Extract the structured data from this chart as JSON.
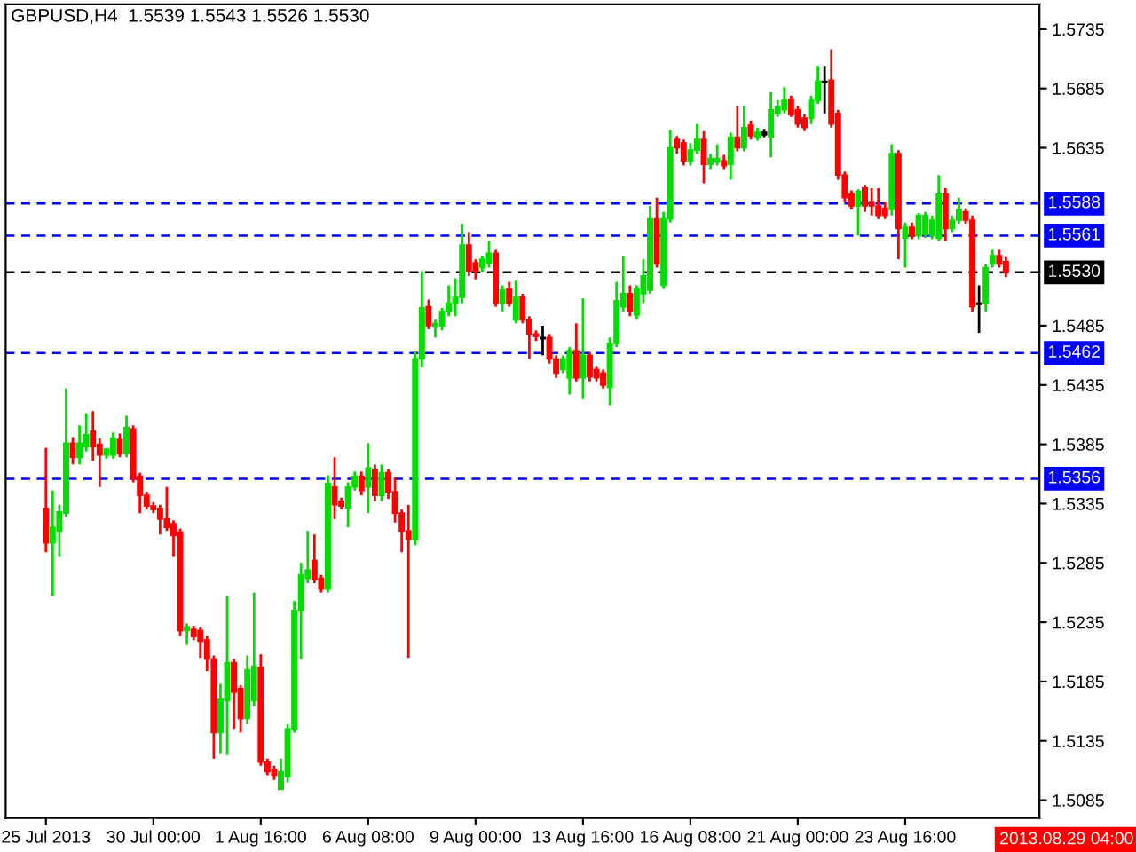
{
  "chart_data": {
    "type": "candlestick",
    "title": "GBPUSD,H4  1.5539 1.5543 1.5526 1.5530",
    "categories": [
      "25 Jul 2013",
      null,
      null,
      null,
      null,
      null,
      null,
      null,
      null,
      null,
      null,
      null,
      null,
      null,
      null,
      null,
      "30 Jul 00:00",
      null,
      null,
      null,
      null,
      null,
      null,
      null,
      null,
      null,
      null,
      null,
      null,
      null,
      null,
      null,
      "1 Aug 16:00",
      null,
      null,
      null,
      null,
      null,
      null,
      null,
      null,
      null,
      null,
      null,
      null,
      null,
      null,
      null,
      "6 Aug 08:00",
      null,
      null,
      null,
      null,
      null,
      null,
      null,
      null,
      null,
      null,
      null,
      null,
      null,
      null,
      null,
      "9 Aug 00:00",
      null,
      null,
      null,
      null,
      null,
      null,
      null,
      null,
      null,
      null,
      null,
      null,
      null,
      null,
      null,
      "13 Aug 16:00",
      null,
      null,
      null,
      null,
      null,
      null,
      null,
      null,
      null,
      null,
      null,
      null,
      null,
      null,
      null,
      "16 Aug 08:00",
      null,
      null,
      null,
      null,
      null,
      null,
      null,
      null,
      null,
      null,
      null,
      null,
      null,
      null,
      null,
      "21 Aug 00:00",
      null,
      null,
      null,
      null,
      null,
      null,
      null,
      null,
      null,
      null,
      null,
      null,
      null,
      null,
      null,
      "23 Aug 16:00",
      null,
      null,
      null,
      null,
      null,
      null,
      null,
      null,
      null,
      null,
      null,
      null,
      null,
      null,
      null
    ],
    "ohlc": [
      [
        1.5331,
        1.5382,
        1.5294,
        1.5302
      ],
      [
        1.5302,
        1.5346,
        1.5257,
        1.5315
      ],
      [
        1.5312,
        1.5334,
        1.529,
        1.5328
      ],
      [
        1.5327,
        1.5432,
        1.5324,
        1.5386
      ],
      [
        1.5386,
        1.5391,
        1.5368,
        1.5374
      ],
      [
        1.5374,
        1.5401,
        1.5368,
        1.5386
      ],
      [
        1.5383,
        1.5411,
        1.5379,
        1.5393
      ],
      [
        1.5396,
        1.5413,
        1.5371,
        1.5383
      ],
      [
        1.5385,
        1.539,
        1.5349,
        1.5376
      ],
      [
        1.5376,
        1.5382,
        1.5373,
        1.5381
      ],
      [
        1.5376,
        1.5395,
        1.5373,
        1.539
      ],
      [
        1.5389,
        1.5394,
        1.5374,
        1.5377
      ],
      [
        1.5377,
        1.5409,
        1.5374,
        1.5399
      ],
      [
        1.5398,
        1.5401,
        1.5353,
        1.5356
      ],
      [
        1.5358,
        1.5361,
        1.5327,
        1.5342
      ],
      [
        1.5342,
        1.5345,
        1.533,
        1.5333
      ],
      [
        1.5333,
        1.5336,
        1.5327,
        1.533
      ],
      [
        1.5331,
        1.5334,
        1.5309,
        1.5322
      ],
      [
        1.5322,
        1.5349,
        1.5312,
        1.5315
      ],
      [
        1.5318,
        1.5321,
        1.529,
        1.5308
      ],
      [
        1.5311,
        1.5314,
        1.5223,
        1.5228
      ],
      [
        1.5228,
        1.5234,
        1.5216,
        1.5231
      ],
      [
        1.5229,
        1.5232,
        1.522,
        1.5223
      ],
      [
        1.5228,
        1.5231,
        1.5205,
        1.5219
      ],
      [
        1.522,
        1.5223,
        1.5194,
        1.5204
      ],
      [
        1.5204,
        1.5207,
        1.512,
        1.5142
      ],
      [
        1.5142,
        1.5183,
        1.5124,
        1.517
      ],
      [
        1.5169,
        1.5257,
        1.5123,
        1.5201
      ],
      [
        1.5201,
        1.5204,
        1.5145,
        1.5176
      ],
      [
        1.5179,
        1.5182,
        1.5142,
        1.5154
      ],
      [
        1.5154,
        1.5207,
        1.5149,
        1.5195
      ],
      [
        1.5169,
        1.526,
        1.5164,
        1.5198
      ],
      [
        1.5197,
        1.5208,
        1.5114,
        1.5117
      ],
      [
        1.5117,
        1.512,
        1.5106,
        1.5109
      ],
      [
        1.5111,
        1.5114,
        1.5102,
        1.5106
      ],
      [
        1.5094,
        1.512,
        1.5094,
        1.5109
      ],
      [
        1.5105,
        1.5149,
        1.51,
        1.5145
      ],
      [
        1.5145,
        1.5253,
        1.5142,
        1.5245
      ],
      [
        1.5245,
        1.5285,
        1.5204,
        1.5275
      ],
      [
        1.5272,
        1.5312,
        1.5268,
        1.5279
      ],
      [
        1.5287,
        1.5309,
        1.5268,
        1.5271
      ],
      [
        1.5272,
        1.5275,
        1.526,
        1.5263
      ],
      [
        1.5263,
        1.5359,
        1.526,
        1.5352
      ],
      [
        1.5349,
        1.5374,
        1.5322,
        1.5334
      ],
      [
        1.5337,
        1.534,
        1.533,
        1.5333
      ],
      [
        1.5331,
        1.5353,
        1.5315,
        1.5349
      ],
      [
        1.5349,
        1.5362,
        1.5346,
        1.5358
      ],
      [
        1.5358,
        1.5362,
        1.5342,
        1.5346
      ],
      [
        1.5349,
        1.5386,
        1.5327,
        1.5365
      ],
      [
        1.5364,
        1.5368,
        1.5337,
        1.5342
      ],
      [
        1.5342,
        1.5368,
        1.5337,
        1.5361
      ],
      [
        1.5361,
        1.5364,
        1.5339,
        1.5345
      ],
      [
        1.5345,
        1.5357,
        1.5319,
        1.5327
      ],
      [
        1.5327,
        1.533,
        1.5294,
        1.5312
      ],
      [
        1.5312,
        1.5334,
        1.5205,
        1.5305
      ],
      [
        1.5305,
        1.5463,
        1.53,
        1.5457
      ],
      [
        1.5457,
        1.5531,
        1.545,
        1.55
      ],
      [
        1.5501,
        1.5507,
        1.5482,
        1.5485
      ],
      [
        1.5484,
        1.549,
        1.5475,
        1.5487
      ],
      [
        1.5485,
        1.55,
        1.5481,
        1.5497
      ],
      [
        1.5497,
        1.5519,
        1.5493,
        1.5504
      ],
      [
        1.5504,
        1.5525,
        1.5493,
        1.5509
      ],
      [
        1.5509,
        1.5571,
        1.5504,
        1.5553
      ],
      [
        1.5553,
        1.5564,
        1.5527,
        1.5531
      ],
      [
        1.5538,
        1.5541,
        1.5524,
        1.5531
      ],
      [
        1.5534,
        1.5544,
        1.553,
        1.5541
      ],
      [
        1.5538,
        1.5556,
        1.5534,
        1.5546
      ],
      [
        1.5546,
        1.5549,
        1.5501,
        1.5504
      ],
      [
        1.5504,
        1.5519,
        1.5497,
        1.5515
      ],
      [
        1.5516,
        1.5522,
        1.5501,
        1.5504
      ],
      [
        1.549,
        1.5523,
        1.5487,
        1.5509
      ],
      [
        1.5509,
        1.5512,
        1.5487,
        1.549
      ],
      [
        1.549,
        1.5493,
        1.5457,
        1.5478
      ],
      [
        1.5478,
        1.5481,
        1.5472,
        1.5476
      ],
      [
        1.5475,
        1.5485,
        1.546,
        1.5474
      ],
      [
        1.5475,
        1.5478,
        1.5453,
        1.5457
      ],
      [
        1.5457,
        1.546,
        1.5441,
        1.5445
      ],
      [
        1.5448,
        1.546,
        1.5445,
        1.5457
      ],
      [
        1.5441,
        1.5467,
        1.5427,
        1.5464
      ],
      [
        1.5464,
        1.5487,
        1.5438,
        1.5441
      ],
      [
        1.5441,
        1.5508,
        1.5423,
        1.546
      ],
      [
        1.546,
        1.5463,
        1.5438,
        1.5442
      ],
      [
        1.5448,
        1.5451,
        1.5438,
        1.5441
      ],
      [
        1.5445,
        1.5448,
        1.5432,
        1.5435
      ],
      [
        1.5433,
        1.5475,
        1.5418,
        1.547
      ],
      [
        1.547,
        1.5522,
        1.5467,
        1.5506
      ],
      [
        1.5501,
        1.5544,
        1.5497,
        1.5512
      ],
      [
        1.5512,
        1.5519,
        1.5493,
        1.5497
      ],
      [
        1.5494,
        1.5519,
        1.549,
        1.5516
      ],
      [
        1.5512,
        1.5541,
        1.5504,
        1.5527
      ],
      [
        1.5515,
        1.5586,
        1.5512,
        1.5575
      ],
      [
        1.5575,
        1.5593,
        1.5534,
        1.5537
      ],
      [
        1.5519,
        1.5581,
        1.5516,
        1.5575
      ],
      [
        1.5575,
        1.565,
        1.5572,
        1.5635
      ],
      [
        1.5642,
        1.5645,
        1.563,
        1.5635
      ],
      [
        1.5639,
        1.5642,
        1.562,
        1.5624
      ],
      [
        1.5624,
        1.5639,
        1.562,
        1.5633
      ],
      [
        1.5633,
        1.5655,
        1.563,
        1.5642
      ],
      [
        1.5642,
        1.5649,
        1.5605,
        1.5621
      ],
      [
        1.5621,
        1.563,
        1.5617,
        1.5626
      ],
      [
        1.5623,
        1.5638,
        1.562,
        1.5626
      ],
      [
        1.5624,
        1.5629,
        1.5617,
        1.562
      ],
      [
        1.5621,
        1.5648,
        1.5608,
        1.5644
      ],
      [
        1.5644,
        1.567,
        1.5632,
        1.5635
      ],
      [
        1.5635,
        1.567,
        1.5632,
        1.5652
      ],
      [
        1.5654,
        1.5658,
        1.5642,
        1.5645
      ],
      [
        1.5644,
        1.5652,
        1.5641,
        1.5648
      ],
      [
        1.5646,
        1.5651,
        1.5644,
        1.5648
      ],
      [
        1.5644,
        1.5682,
        1.5627,
        1.5667
      ],
      [
        1.5664,
        1.5675,
        1.5661,
        1.567
      ],
      [
        1.5667,
        1.5686,
        1.5664,
        1.5675
      ],
      [
        1.5676,
        1.5679,
        1.5661,
        1.5663
      ],
      [
        1.5667,
        1.567,
        1.5652,
        1.5655
      ],
      [
        1.566,
        1.5663,
        1.5649,
        1.5652
      ],
      [
        1.566,
        1.5679,
        1.5655,
        1.5675
      ],
      [
        1.5675,
        1.5704,
        1.5672,
        1.5691
      ],
      [
        1.5691,
        1.5704,
        1.5664,
        1.569
      ],
      [
        1.5692,
        1.5718,
        1.5652,
        1.5655
      ],
      [
        1.5664,
        1.5667,
        1.5608,
        1.5612
      ],
      [
        1.5612,
        1.5615,
        1.5589,
        1.5593
      ],
      [
        1.5596,
        1.5599,
        1.5583,
        1.5586
      ],
      [
        1.5586,
        1.56,
        1.5561,
        1.5598
      ],
      [
        1.5601,
        1.5604,
        1.5581,
        1.5586
      ],
      [
        1.5589,
        1.5601,
        1.5578,
        1.5586
      ],
      [
        1.5586,
        1.5601,
        1.5575,
        1.5578
      ],
      [
        1.5584,
        1.5589,
        1.5575,
        1.5578
      ],
      [
        1.5583,
        1.5638,
        1.5578,
        1.563
      ],
      [
        1.563,
        1.5633,
        1.5541,
        1.5567
      ],
      [
        1.5559,
        1.5572,
        1.5534,
        1.5568
      ],
      [
        1.5568,
        1.5572,
        1.5558,
        1.5561
      ],
      [
        1.5561,
        1.558,
        1.5558,
        1.5578
      ],
      [
        1.5562,
        1.5581,
        1.5559,
        1.5578
      ],
      [
        1.5561,
        1.5578,
        1.5558,
        1.5574
      ],
      [
        1.5559,
        1.5612,
        1.5556,
        1.5596
      ],
      [
        1.5596,
        1.5601,
        1.5556,
        1.5567
      ],
      [
        1.5567,
        1.5578,
        1.5564,
        1.5574
      ],
      [
        1.5574,
        1.5593,
        1.5571,
        1.5583
      ],
      [
        1.5581,
        1.5584,
        1.5571,
        1.5574
      ],
      [
        1.5574,
        1.5578,
        1.5497,
        1.5501
      ],
      [
        1.5504,
        1.5519,
        1.5479,
        1.5503
      ],
      [
        1.5504,
        1.5537,
        1.5497,
        1.5534
      ],
      [
        1.5537,
        1.5549,
        1.5534,
        1.5544
      ],
      [
        1.5544,
        1.5549,
        1.5534,
        1.5537
      ],
      [
        1.5539,
        1.5543,
        1.5526,
        1.553
      ]
    ],
    "colors": [
      "#ff0000",
      "#00dd00",
      "#00dd00",
      "#00dd00",
      "#ff0000",
      "#00dd00",
      "#00dd00",
      "#ff0000",
      "#ff0000",
      "#00dd00",
      "#00dd00",
      "#ff0000",
      "#00dd00",
      "#ff0000",
      "#ff0000",
      "#ff0000",
      "#ff0000",
      "#ff0000",
      "#ff0000",
      "#ff0000",
      "#ff0000",
      "#00dd00",
      "#ff0000",
      "#ff0000",
      "#ff0000",
      "#ff0000",
      "#00dd00",
      "#00dd00",
      "#ff0000",
      "#ff0000",
      "#00dd00",
      "#00dd00",
      "#ff0000",
      "#ff0000",
      "#ff0000",
      "#00dd00",
      "#00dd00",
      "#00dd00",
      "#00dd00",
      "#00dd00",
      "#ff0000",
      "#ff0000",
      "#00dd00",
      "#ff0000",
      "#ff0000",
      "#00dd00",
      "#00dd00",
      "#ff0000",
      "#00dd00",
      "#ff0000",
      "#00dd00",
      "#ff0000",
      "#ff0000",
      "#ff0000",
      "#ff0000",
      "#00dd00",
      "#00dd00",
      "#ff0000",
      "#00dd00",
      "#00dd00",
      "#00dd00",
      "#00dd00",
      "#00dd00",
      "#ff0000",
      "#ff0000",
      "#00dd00",
      "#00dd00",
      "#ff0000",
      "#00dd00",
      "#ff0000",
      "#00dd00",
      "#ff0000",
      "#ff0000",
      "#ff0000",
      "#000000",
      "#ff0000",
      "#ff0000",
      "#00dd00",
      "#00dd00",
      "#ff0000",
      "#00dd00",
      "#ff0000",
      "#ff0000",
      "#ff0000",
      "#00dd00",
      "#00dd00",
      "#00dd00",
      "#ff0000",
      "#00dd00",
      "#00dd00",
      "#00dd00",
      "#ff0000",
      "#00dd00",
      "#00dd00",
      "#ff0000",
      "#ff0000",
      "#00dd00",
      "#00dd00",
      "#ff0000",
      "#00dd00",
      "#00dd00",
      "#ff0000",
      "#00dd00",
      "#ff0000",
      "#00dd00",
      "#ff0000",
      "#00dd00",
      "#000000",
      "#00dd00",
      "#00dd00",
      "#00dd00",
      "#ff0000",
      "#ff0000",
      "#ff0000",
      "#00dd00",
      "#00dd00",
      "#000000",
      "#ff0000",
      "#ff0000",
      "#ff0000",
      "#ff0000",
      "#00dd00",
      "#ff0000",
      "#ff0000",
      "#ff0000",
      "#ff0000",
      "#00dd00",
      "#ff0000",
      "#00dd00",
      "#ff0000",
      "#00dd00",
      "#00dd00",
      "#00dd00",
      "#00dd00",
      "#ff0000",
      "#00dd00",
      "#00dd00",
      "#ff0000",
      "#ff0000",
      "#000000",
      "#00dd00",
      "#00dd00",
      "#ff0000",
      "#ff0000"
    ],
    "ylim": [
      1.507,
      1.5756
    ],
    "yticks": [
      1.5085,
      1.5135,
      1.5185,
      1.5235,
      1.5285,
      1.5335,
      1.5385,
      1.5435,
      1.5485,
      1.5635,
      1.5685,
      1.5735
    ],
    "ref_lines": [
      {
        "axis": "y",
        "value": 1.5588,
        "label": "1.5588",
        "color": "#0000ff",
        "line_style": "dashed"
      },
      {
        "axis": "y",
        "value": 1.5561,
        "label": "1.5561",
        "color": "#0000ff",
        "line_style": "dashed"
      },
      {
        "axis": "y",
        "value": 1.553,
        "label": "1.5530",
        "color": "#000000",
        "line_style": "dashed"
      },
      {
        "axis": "y",
        "value": 1.5462,
        "label": "1.5462",
        "color": "#0000ff",
        "line_style": "dashed"
      },
      {
        "axis": "y",
        "value": 1.5356,
        "label": "1.5356",
        "color": "#0000ff",
        "line_style": "dashed"
      }
    ],
    "annotations": [
      "2013.08.29 04:00"
    ]
  }
}
